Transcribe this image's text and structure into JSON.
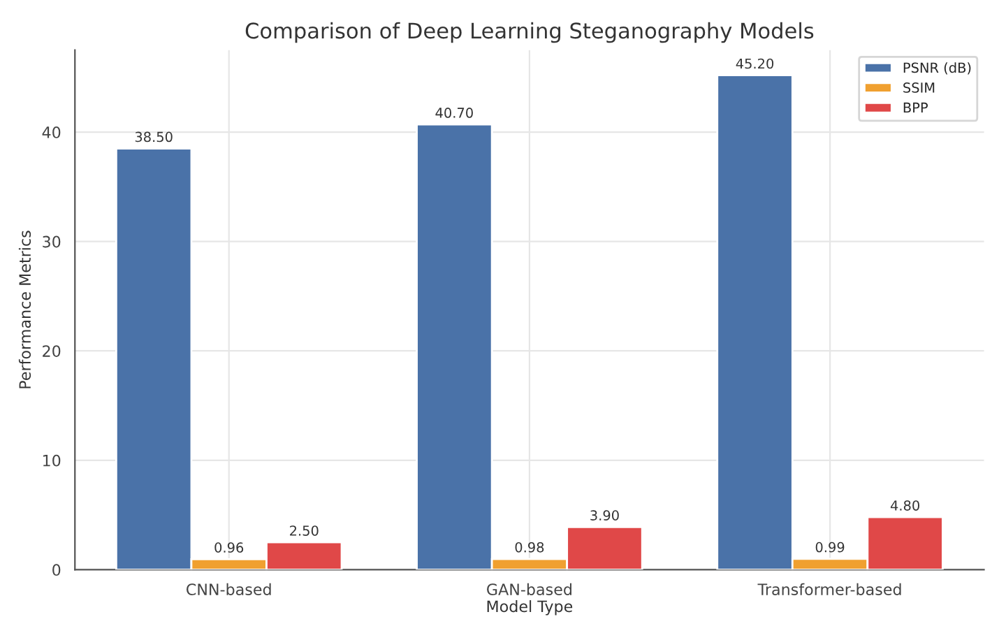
{
  "chart_data": {
    "type": "bar",
    "title": "Comparison of Deep Learning Steganography Models",
    "xlabel": "Model Type",
    "ylabel": "Performance Metrics",
    "categories": [
      "CNN-based",
      "GAN-based",
      "Transformer-based"
    ],
    "series": [
      {
        "name": "PSNR (dB)",
        "color": "#4a72a8",
        "values": [
          38.5,
          40.7,
          45.2
        ],
        "value_labels": [
          "38.50",
          "40.70",
          "45.20"
        ]
      },
      {
        "name": "SSIM",
        "color": "#f0a030",
        "values": [
          0.96,
          0.98,
          0.99
        ],
        "value_labels": [
          "0.96",
          "0.98",
          "0.99"
        ]
      },
      {
        "name": "BPP",
        "color": "#e04848",
        "values": [
          2.5,
          3.9,
          4.8
        ],
        "value_labels": [
          "2.50",
          "3.90",
          "4.80"
        ]
      }
    ],
    "ylim": [
      0,
      47.5
    ],
    "yticks": [
      0,
      10,
      20,
      30,
      40
    ],
    "grid": true,
    "legend": "top right"
  }
}
